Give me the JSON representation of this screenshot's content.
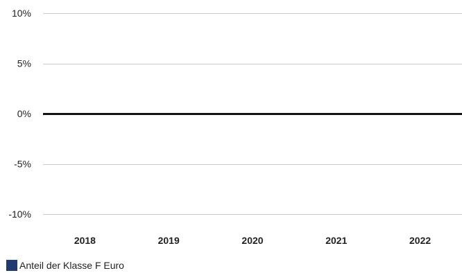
{
  "chart_data": {
    "type": "bar",
    "categories": [
      "2018",
      "2019",
      "2020",
      "2021",
      "2022"
    ],
    "series": [
      {
        "name": "Anteil der Klasse F Euro",
        "values": [
          null,
          null,
          null,
          null,
          null
        ],
        "color": "#1f3a6e"
      }
    ],
    "yticks": [
      "10%",
      "5%",
      "0%",
      "-5%",
      "-10%"
    ],
    "ylim": [
      -10,
      10
    ],
    "grid": true,
    "legend_position": "bottom-left",
    "zero_line_color": "#111111",
    "grid_color": "#cccccc"
  }
}
